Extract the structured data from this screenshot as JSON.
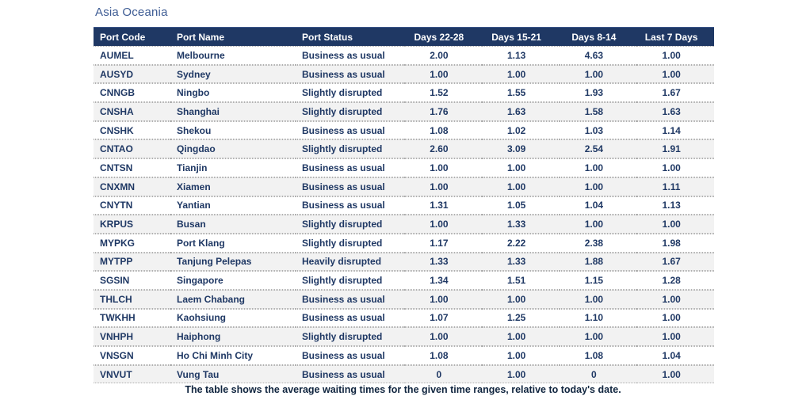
{
  "page": {
    "title": "Asia Oceania",
    "footer_note": "The table shows the average waiting times for the given time ranges, relative to today's date."
  },
  "colors": {
    "header_bg": "#1F3864",
    "header_text": "#FFFFFF",
    "cell_text": "#1F3864",
    "title_text": "#3E5C94",
    "row_bg": "#FFFFFF",
    "row_alt_bg": "#F2F2F2",
    "divider": "#AFAFAF",
    "footer_text": "#10253F"
  },
  "chart_data": {
    "type": "table",
    "title": "Asia Oceania",
    "columns": [
      "Port Code",
      "Port Name",
      "Port Status",
      "Days 22-28",
      "Days 15-21",
      "Days 8-14",
      "Last 7 Days"
    ],
    "column_keys": [
      "port_code",
      "port_name",
      "port_status",
      "days_22_28",
      "days_15_21",
      "days_8_14",
      "last_7_days"
    ],
    "rows": [
      {
        "port_code": "AUMEL",
        "port_name": "Melbourne",
        "port_status": "Business as usual",
        "days_22_28": "2.00",
        "days_15_21": "1.13",
        "days_8_14": "4.63",
        "last_7_days": "1.00"
      },
      {
        "port_code": "AUSYD",
        "port_name": "Sydney",
        "port_status": "Business as usual",
        "days_22_28": "1.00",
        "days_15_21": "1.00",
        "days_8_14": "1.00",
        "last_7_days": "1.00"
      },
      {
        "port_code": "CNNGB",
        "port_name": "Ningbo",
        "port_status": "Slightly disrupted",
        "days_22_28": "1.52",
        "days_15_21": "1.55",
        "days_8_14": "1.93",
        "last_7_days": "1.67"
      },
      {
        "port_code": "CNSHA",
        "port_name": "Shanghai",
        "port_status": "Slightly disrupted",
        "days_22_28": "1.76",
        "days_15_21": "1.63",
        "days_8_14": "1.58",
        "last_7_days": "1.63"
      },
      {
        "port_code": "CNSHK",
        "port_name": "Shekou",
        "port_status": "Business as usual",
        "days_22_28": "1.08",
        "days_15_21": "1.02",
        "days_8_14": "1.03",
        "last_7_days": "1.14"
      },
      {
        "port_code": "CNTAO",
        "port_name": "Qingdao",
        "port_status": "Slightly disrupted",
        "days_22_28": "2.60",
        "days_15_21": "3.09",
        "days_8_14": "2.54",
        "last_7_days": "1.91"
      },
      {
        "port_code": "CNTSN",
        "port_name": "Tianjin",
        "port_status": "Business as usual",
        "days_22_28": "1.00",
        "days_15_21": "1.00",
        "days_8_14": "1.00",
        "last_7_days": "1.00"
      },
      {
        "port_code": "CNXMN",
        "port_name": "Xiamen",
        "port_status": "Business as usual",
        "days_22_28": "1.00",
        "days_15_21": "1.00",
        "days_8_14": "1.00",
        "last_7_days": "1.11"
      },
      {
        "port_code": "CNYTN",
        "port_name": "Yantian",
        "port_status": "Business as usual",
        "days_22_28": "1.31",
        "days_15_21": "1.05",
        "days_8_14": "1.04",
        "last_7_days": "1.13"
      },
      {
        "port_code": "KRPUS",
        "port_name": "Busan",
        "port_status": "Slightly disrupted",
        "days_22_28": "1.00",
        "days_15_21": "1.33",
        "days_8_14": "1.00",
        "last_7_days": "1.00"
      },
      {
        "port_code": "MYPKG",
        "port_name": "Port Klang",
        "port_status": "Slightly disrupted",
        "days_22_28": "1.17",
        "days_15_21": "2.22",
        "days_8_14": "2.38",
        "last_7_days": "1.98"
      },
      {
        "port_code": "MYTPP",
        "port_name": "Tanjung Pelepas",
        "port_status": "Heavily disrupted",
        "days_22_28": "1.33",
        "days_15_21": "1.33",
        "days_8_14": "1.88",
        "last_7_days": "1.67"
      },
      {
        "port_code": "SGSIN",
        "port_name": "Singapore",
        "port_status": "Slightly disrupted",
        "days_22_28": "1.34",
        "days_15_21": "1.51",
        "days_8_14": "1.15",
        "last_7_days": "1.28"
      },
      {
        "port_code": "THLCH",
        "port_name": "Laem Chabang",
        "port_status": "Business as usual",
        "days_22_28": "1.00",
        "days_15_21": "1.00",
        "days_8_14": "1.00",
        "last_7_days": "1.00"
      },
      {
        "port_code": "TWKHH",
        "port_name": "Kaohsiung",
        "port_status": "Business as usual",
        "days_22_28": "1.07",
        "days_15_21": "1.25",
        "days_8_14": "1.10",
        "last_7_days": "1.00"
      },
      {
        "port_code": "VNHPH",
        "port_name": "Haiphong",
        "port_status": "Slightly disrupted",
        "days_22_28": "1.00",
        "days_15_21": "1.00",
        "days_8_14": "1.00",
        "last_7_days": "1.00"
      },
      {
        "port_code": "VNSGN",
        "port_name": "Ho Chi Minh City",
        "port_status": "Business as usual",
        "days_22_28": "1.08",
        "days_15_21": "1.00",
        "days_8_14": "1.08",
        "last_7_days": "1.04"
      },
      {
        "port_code": "VNVUT",
        "port_name": "Vung Tau",
        "port_status": "Business as usual",
        "days_22_28": "0",
        "days_15_21": "1.00",
        "days_8_14": "0",
        "last_7_days": "1.00"
      }
    ],
    "note": "The table shows the average waiting times for the given time ranges, relative to today's date."
  }
}
